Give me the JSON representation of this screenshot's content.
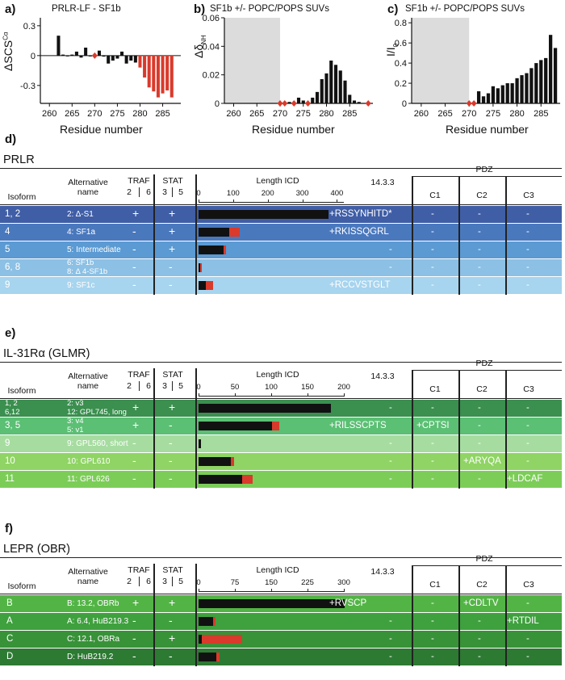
{
  "panels": {
    "a": {
      "label": "a)",
      "title": "PRLR-LF - SF1b",
      "ylabel": "ΔSCS",
      "ylabel_sup": "Cα",
      "xlabel": "Residue number",
      "yticks": [
        "0.3",
        "0",
        "-0.3"
      ],
      "xticks": [
        "260",
        "265",
        "270",
        "275",
        "280",
        "285"
      ]
    },
    "b": {
      "label": "b)",
      "title": "SF1b +/- POPC/POPS SUVs",
      "ylabel": "Δδ",
      "ylabel_sub": "NH",
      "xlabel": "Residue number",
      "yticks": [
        "0.06",
        "0.04",
        "0.02",
        "0"
      ],
      "xticks": [
        "260",
        "265",
        "270",
        "275",
        "280",
        "285"
      ]
    },
    "c": {
      "label": "c)",
      "title": "SF1b +/- POPC/POPS SUVs",
      "ylabel": "I/I",
      "ylabel_sub": "0",
      "xlabel": "Residue number",
      "yticks": [
        "0.8",
        "0.6",
        "0.4",
        "0.2",
        "0"
      ],
      "xticks": [
        "260",
        "265",
        "270",
        "275",
        "280",
        "285"
      ]
    }
  },
  "chart_data": [
    {
      "type": "bar",
      "title": "PRLR-LF - SF1b",
      "xlabel": "Residue number",
      "ylabel": "ΔSCS Cα",
      "xlim": [
        258,
        289
      ],
      "ylim": [
        -0.48,
        0.38
      ],
      "x": [
        262,
        263,
        264,
        265,
        266,
        267,
        268,
        269,
        270,
        271,
        272,
        273,
        274,
        275,
        276,
        277,
        278,
        279,
        280,
        281,
        282,
        283,
        284,
        285,
        286,
        287
      ],
      "values": [
        0.2,
        0.01,
        0.0,
        0.01,
        0.04,
        -0.02,
        0.08,
        0.0,
        0.0,
        0.05,
        -0.01,
        -0.08,
        -0.05,
        -0.03,
        0.04,
        -0.08,
        -0.05,
        -0.07,
        -0.12,
        -0.22,
        -0.32,
        -0.36,
        -0.42,
        -0.38,
        -0.35,
        -0.42
      ],
      "highlight_red": [
        270,
        280,
        281,
        282,
        283,
        284,
        285,
        286,
        287
      ]
    },
    {
      "type": "bar",
      "title": "SF1b +/- POPC/POPS SUVs",
      "xlabel": "Residue number",
      "ylabel": "ΔδNH",
      "xlim": [
        258,
        290
      ],
      "ylim": [
        0,
        0.06
      ],
      "shaded_range": [
        258,
        270
      ],
      "x": [
        272,
        274,
        275,
        277,
        278,
        279,
        280,
        281,
        282,
        283,
        284,
        285,
        286,
        287
      ],
      "values": [
        0.001,
        0.004,
        0.002,
        0.004,
        0.008,
        0.017,
        0.021,
        0.03,
        0.027,
        0.023,
        0.016,
        0.006,
        0.002,
        0.001
      ],
      "unassigned_red": [
        270,
        271,
        273,
        276,
        289
      ]
    },
    {
      "type": "bar",
      "title": "SF1b +/- POPC/POPS SUVs",
      "xlabel": "Residue number",
      "ylabel": "I/I0",
      "xlim": [
        258,
        289
      ],
      "ylim": [
        0,
        0.85
      ],
      "shaded_range": [
        258,
        270
      ],
      "x": [
        272,
        273,
        274,
        275,
        276,
        277,
        278,
        279,
        280,
        281,
        282,
        283,
        284,
        285,
        286,
        287,
        288
      ],
      "values": [
        0.12,
        0.07,
        0.1,
        0.17,
        0.15,
        0.18,
        0.2,
        0.2,
        0.25,
        0.28,
        0.3,
        0.35,
        0.4,
        0.43,
        0.45,
        0.68,
        0.55
      ],
      "unassigned_red": [
        270,
        271
      ]
    }
  ],
  "sections": [
    {
      "label": "d)",
      "name": "PRLR",
      "len_ticks": [
        "0",
        "100",
        "200",
        "300",
        "400"
      ],
      "len_max": 420,
      "rows": [
        {
          "iso": "1, 2",
          "alt": "2: Δ-S1",
          "traf": "+",
          "stat": "+",
          "black": 376,
          "red": 0,
          "p1433": "+RSSYNHITD*",
          "c1": "-",
          "c2": "-",
          "c3": "-",
          "color": "#3f5ea6"
        },
        {
          "iso": "4",
          "alt": "4: SF1a",
          "traf": "-",
          "stat": "+",
          "black": 88,
          "red": 32,
          "p1433": "+RKISSQGRL",
          "c1": "-",
          "c2": "-",
          "c3": "-",
          "color": "#4a78bd"
        },
        {
          "iso": "5",
          "alt": "5: Intermediate",
          "traf": "-",
          "stat": "+",
          "black": 72,
          "red": 8,
          "p1433": "-",
          "c1": "-",
          "c2": "-",
          "c3": "-",
          "color": "#5b9ad2"
        },
        {
          "iso": "6, 8",
          "alt": "6: SF1b",
          "alt2": "8: Δ 4-SF1b",
          "traf": "-",
          "stat": "-",
          "black": 4,
          "red": 6,
          "p1433": "-",
          "c1": "-",
          "c2": "-",
          "c3": "-",
          "color": "#8cc0e4"
        },
        {
          "iso": "9",
          "alt": "9: SF1c",
          "traf": "-",
          "stat": "-",
          "black": 22,
          "red": 20,
          "p1433": "+RCCVSTGLT",
          "c1": "-",
          "c2": "-",
          "c3": "-",
          "color": "#a7d4ee"
        }
      ]
    },
    {
      "label": "e)",
      "name": "IL-31Rα (GLMR)",
      "len_ticks": [
        "0",
        "50",
        "100",
        "150",
        "200"
      ],
      "len_max": 200,
      "rows": [
        {
          "iso": "1, 2",
          "iso2": "6,12",
          "alt": "2: v3",
          "alt2": "12: GPL745, long",
          "traf": "+",
          "stat": "+",
          "black": 182,
          "red": 0,
          "p1433": "-",
          "c1": "-",
          "c2": "-",
          "c3": "-",
          "color": "#3b8f4f"
        },
        {
          "iso": "3, 5",
          "alt": "3: v4",
          "alt2": "5: v1",
          "traf": "+",
          "stat": "-",
          "black": 101,
          "red": 10,
          "p1433": "+RILSSCPTS",
          "c1": "+CPTSI",
          "c2": "-",
          "c3": "-",
          "color": "#5bbf74"
        },
        {
          "iso": "9",
          "alt": "9: GPL560, short",
          "traf": "-",
          "stat": "-",
          "black": 3,
          "red": 0,
          "p1433": "-",
          "c1": "-",
          "c2": "-",
          "c3": "-",
          "color": "#a6dca0"
        },
        {
          "iso": "10",
          "alt": "10: GPL610",
          "traf": "-",
          "stat": "-",
          "black": 44,
          "red": 5,
          "p1433": "-",
          "c1": "-",
          "c2": "+ARYQA",
          "c3": "-",
          "color": "#8fd464"
        },
        {
          "iso": "11",
          "alt": "11: GPL626",
          "traf": "-",
          "stat": "-",
          "black": 60,
          "red": 14,
          "p1433": "-",
          "c1": "-",
          "c2": "-",
          "c3": "+LDCAF",
          "color": "#7ccd58"
        }
      ]
    },
    {
      "label": "f)",
      "name": "LEPR (OBR)",
      "len_ticks": [
        "0",
        "75",
        "150",
        "225",
        "300"
      ],
      "len_max": 300,
      "rows": [
        {
          "iso": "B",
          "alt": "B: 13.2, OBRb",
          "traf": "+",
          "stat": "+",
          "black": 302,
          "red": 0,
          "p1433": "+RVSCP",
          "c1": "-",
          "c2": "+CDLTV",
          "c3": "-",
          "color": "#53b446"
        },
        {
          "iso": "A",
          "alt": "A: 6.4, HuB219.3",
          "traf": "-",
          "stat": "-",
          "black": 30,
          "red": 5,
          "p1433": "-",
          "c1": "-",
          "c2": "-",
          "c3": "+RTDIL",
          "color": "#3fa03e"
        },
        {
          "iso": "C",
          "alt": "C: 12.1, OBRa",
          "traf": "-",
          "stat": "+",
          "black": 6,
          "red": 84,
          "p1433": "-",
          "c1": "-",
          "c2": "-",
          "c3": "-",
          "color": "#389238"
        },
        {
          "iso": "D",
          "alt": "D: HuB219.2",
          "traf": "-",
          "stat": "-",
          "black": 36,
          "red": 8,
          "p1433": "-",
          "c1": "-",
          "c2": "-",
          "c3": "-",
          "color": "#2d7a33"
        }
      ]
    }
  ],
  "headers": {
    "isoform": "Isoform",
    "alt1": "Alternative",
    "alt2": "name",
    "traf": "TRAF",
    "traf_sub1": "2",
    "traf_sub2": "6",
    "stat": "STAT",
    "stat_sub1": "3",
    "stat_sub2": "5",
    "length": "Length ICD",
    "p1433": "14.3.3",
    "pdz": "PDZ",
    "c1": "C1",
    "c2": "C2",
    "c3": "C3"
  },
  "colors": {
    "red": "#d93a2b",
    "black": "#111111",
    "shade": "#dcdcdc"
  }
}
